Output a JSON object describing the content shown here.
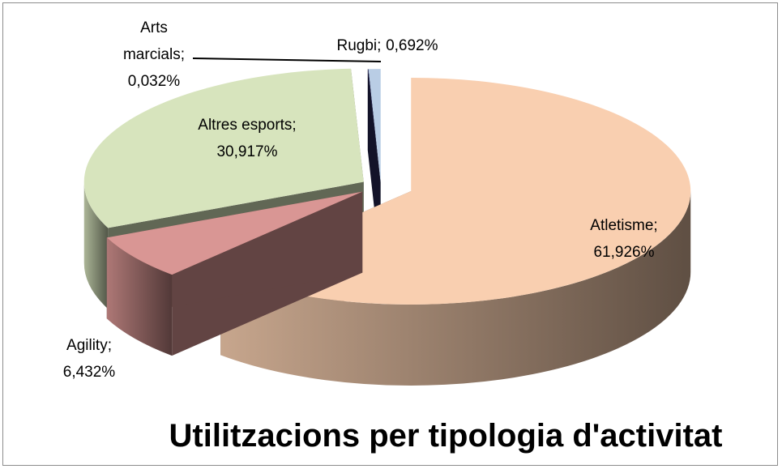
{
  "chart_data": {
    "type": "pie3d",
    "title": "Utilitzacions per tipologia d'activitat",
    "categories": [
      "Atletisme;",
      "Agility;",
      "Altres esports;",
      "Arts marcials;",
      "Rugbi;"
    ],
    "values": [
      61.926,
      6.432,
      30.917,
      0.032,
      0.692
    ],
    "value_labels": [
      "61,926%",
      "6,432%",
      "30,917%",
      "0,032%",
      "0,692%"
    ],
    "colors": [
      "#f9cfb0",
      "#d99694",
      "#d7e4bd",
      "#2a2a5c",
      "#b9cde5"
    ]
  }
}
